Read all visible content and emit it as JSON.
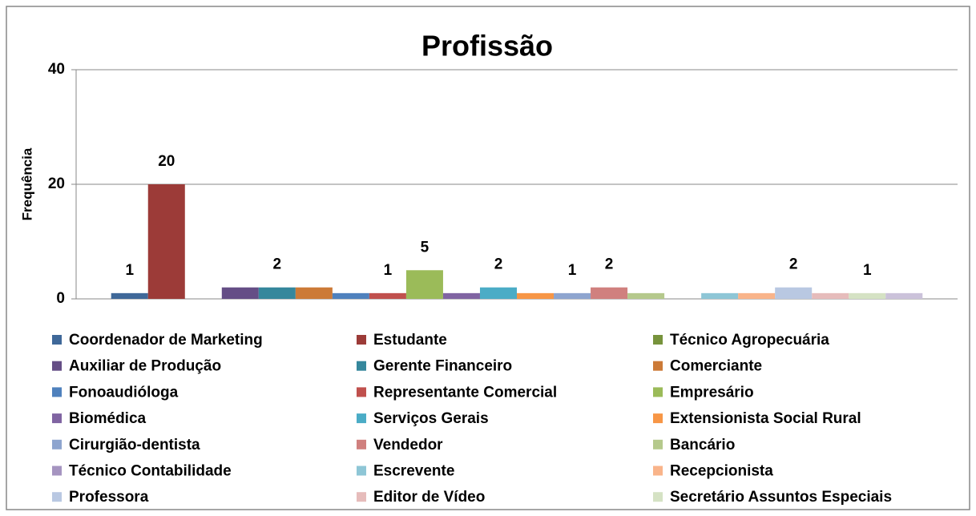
{
  "chart_data": {
    "type": "bar",
    "title": "Profissão",
    "y_label": "Frequência",
    "ylim": [
      0,
      40
    ],
    "yticks": [
      0,
      20,
      40
    ],
    "grid": true,
    "series": [
      {
        "name": "Coordenador de Marketing",
        "color": "#3f6899",
        "values": [
          1
        ],
        "show_label": true
      },
      {
        "name": "Estudante",
        "color": "#9c3b38",
        "values": [
          20
        ],
        "show_label": true
      },
      {
        "name": "Técnico Agropecuária",
        "color": "#77933c",
        "values": [
          0
        ],
        "show_label": false
      },
      {
        "name": "Auxiliar de Produção",
        "color": "#654e86",
        "values": [
          2
        ],
        "show_label": false
      },
      {
        "name": "Gerente Financeiro",
        "color": "#35879c",
        "values": [
          2
        ],
        "show_label": true
      },
      {
        "name": "Comerciante",
        "color": "#cc7a37",
        "values": [
          2
        ],
        "show_label": false
      },
      {
        "name": "Fonoaudióloga",
        "color": "#4f81bd",
        "values": [
          1
        ],
        "show_label": false
      },
      {
        "name": "Representante Comercial",
        "color": "#c0504d",
        "values": [
          1
        ],
        "show_label": true
      },
      {
        "name": "Empresário",
        "color": "#9bbb59",
        "values": [
          5
        ],
        "show_label": true
      },
      {
        "name": "Biomédica",
        "color": "#8064a2",
        "values": [
          1
        ],
        "show_label": false
      },
      {
        "name": "Serviços Gerais",
        "color": "#4bacc6",
        "values": [
          2
        ],
        "show_label": true
      },
      {
        "name": "Extensionista Social Rural",
        "color": "#f79646",
        "values": [
          1
        ],
        "show_label": false
      },
      {
        "name": "Cirurgião-dentista",
        "color": "#8ea5cf",
        "values": [
          1
        ],
        "show_label": true
      },
      {
        "name": "Vendedor",
        "color": "#d0807e",
        "values": [
          2
        ],
        "show_label": true
      },
      {
        "name": "Bancário",
        "color": "#b5c98c",
        "values": [
          1
        ],
        "show_label": false
      },
      {
        "name": "Técnico Contabilidade",
        "color": "#a594c0",
        "values": [
          0
        ],
        "show_label": false
      },
      {
        "name": "Escrevente",
        "color": "#8ec6d6",
        "values": [
          1
        ],
        "show_label": false
      },
      {
        "name": "Recepcionista",
        "color": "#f9b48a",
        "values": [
          1
        ],
        "show_label": false
      },
      {
        "name": "Professora",
        "color": "#b9c8e2",
        "values": [
          2
        ],
        "show_label": true
      },
      {
        "name": "Editor de Vídeo",
        "color": "#e6bcbb",
        "values": [
          1
        ],
        "show_label": false
      },
      {
        "name": "Secretário Assuntos Especiais",
        "color": "#d5e2c4",
        "values": [
          1
        ],
        "show_label": true
      },
      {
        "name": null,
        "color": "#cbc2da",
        "values": [
          1
        ],
        "show_label": false
      }
    ]
  }
}
